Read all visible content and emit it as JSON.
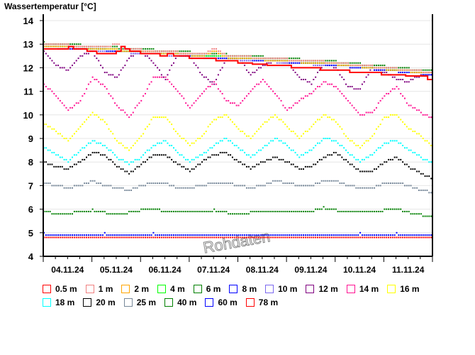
{
  "chart_data": {
    "type": "line",
    "title": "Wassertemperatur [°C]",
    "xlabel": "",
    "ylabel": "Wassertemperatur [°C]",
    "ylim": [
      4,
      14
    ],
    "yticks": [
      "4",
      "5",
      "6",
      "7",
      "8",
      "9",
      "10",
      "11",
      "12",
      "13",
      "14"
    ],
    "xlim_days": [
      0,
      8
    ],
    "x_start": "04.11.24 00:00",
    "xticks": [
      "04.11.24",
      "05.11.24",
      "06.11.24",
      "07.11.24",
      "08.11.24",
      "09.11.24",
      "10.11.24",
      "11.11.24"
    ],
    "grid": true,
    "legend_position": "bottom",
    "watermark": "Rohdaten",
    "sample_step_days": 0.25,
    "series": [
      {
        "name": "0.5 m",
        "color": "#ff0000",
        "style": "step-solid",
        "points": [
          [
            0,
            12.8
          ],
          [
            0.52,
            12.9
          ],
          [
            0.62,
            12.8
          ],
          [
            0.9,
            12.7
          ],
          [
            1.1,
            12.6
          ],
          [
            1.5,
            12.7
          ],
          [
            1.6,
            12.9
          ],
          [
            1.68,
            12.8
          ],
          [
            1.78,
            12.7
          ],
          [
            2.0,
            12.6
          ],
          [
            2.4,
            12.5
          ],
          [
            2.55,
            12.6
          ],
          [
            2.68,
            12.5
          ],
          [
            3.0,
            12.4
          ],
          [
            3.55,
            12.3
          ],
          [
            4.0,
            12.2
          ],
          [
            4.3,
            12.15
          ],
          [
            4.6,
            12.1
          ],
          [
            5.1,
            12.0
          ],
          [
            5.7,
            11.9
          ],
          [
            6.3,
            11.8
          ],
          [
            6.95,
            11.7
          ],
          [
            7.45,
            11.65
          ],
          [
            7.9,
            11.5
          ],
          [
            8.0,
            11.5
          ]
        ]
      },
      {
        "name": "1 m",
        "color": "#f08080",
        "values": [
          12.95,
          12.95,
          12.95,
          12.9,
          12.85,
          12.85,
          13.0,
          12.8,
          12.75,
          12.7,
          12.65,
          12.65,
          12.6,
          12.55,
          12.8,
          12.5,
          12.45,
          12.45,
          12.4,
          12.35,
          12.35,
          12.3,
          12.25,
          12.25,
          12.2,
          12.15,
          12.1,
          12.05,
          12.0,
          11.95,
          11.9,
          11.85,
          11.8
        ]
      },
      {
        "name": "2 m",
        "color": "#ffa500",
        "values": [
          12.9,
          12.9,
          12.9,
          12.85,
          12.8,
          12.8,
          12.75,
          12.7,
          12.7,
          12.65,
          12.6,
          12.6,
          12.55,
          12.5,
          12.7,
          12.45,
          12.4,
          12.4,
          12.35,
          12.3,
          12.3,
          12.25,
          12.2,
          12.2,
          12.15,
          12.1,
          12.05,
          12.0,
          11.95,
          11.9,
          11.85,
          11.8,
          11.75
        ]
      },
      {
        "name": "4 m",
        "color": "#00ff00",
        "values": [
          12.95,
          12.9,
          12.9,
          12.85,
          12.8,
          12.8,
          12.75,
          12.7,
          12.7,
          12.65,
          12.6,
          12.6,
          12.55,
          12.5,
          12.5,
          12.45,
          12.4,
          12.4,
          12.35,
          12.3,
          12.3,
          12.25,
          12.2,
          12.2,
          12.15,
          12.1,
          12.05,
          12.0,
          11.95,
          11.9,
          11.85,
          11.8,
          11.75
        ]
      },
      {
        "name": "6 m",
        "color": "#008000",
        "values": [
          13.05,
          13.0,
          13.0,
          12.95,
          12.9,
          12.9,
          12.85,
          12.8,
          12.8,
          12.75,
          12.7,
          12.7,
          12.65,
          12.6,
          12.6,
          12.55,
          12.5,
          12.5,
          12.45,
          12.4,
          12.4,
          12.35,
          12.3,
          12.3,
          12.25,
          12.2,
          12.15,
          12.1,
          12.05,
          12.0,
          11.95,
          11.9,
          11.85
        ]
      },
      {
        "name": "8 m",
        "color": "#0000ff",
        "values": [
          12.9,
          12.85,
          12.85,
          12.8,
          12.75,
          12.75,
          12.7,
          12.65,
          12.65,
          12.6,
          12.55,
          12.55,
          12.5,
          12.45,
          12.45,
          12.4,
          12.35,
          12.35,
          12.3,
          12.25,
          12.25,
          12.2,
          12.15,
          12.15,
          12.1,
          12.05,
          12.0,
          11.95,
          11.9,
          11.85,
          11.8,
          11.75,
          11.7
        ]
      },
      {
        "name": "10 m",
        "color": "#7b68ee",
        "values": [
          12.85,
          12.85,
          12.8,
          12.8,
          12.75,
          12.7,
          12.7,
          12.65,
          12.6,
          12.6,
          12.55,
          12.5,
          12.5,
          12.45,
          12.4,
          12.4,
          12.35,
          12.3,
          12.3,
          12.25,
          12.2,
          12.2,
          12.15,
          12.1,
          12.1,
          12.05,
          12.0,
          11.95,
          11.9,
          11.85,
          11.8,
          11.75,
          11.7
        ]
      },
      {
        "name": "12 m",
        "color": "#800080",
        "values": [
          12.7,
          12.1,
          11.9,
          12.5,
          12.7,
          11.8,
          11.6,
          12.4,
          12.7,
          12.2,
          11.5,
          12.6,
          12.5,
          11.7,
          11.3,
          12.4,
          12.4,
          11.7,
          12.1,
          12.3,
          12.2,
          11.6,
          11.3,
          12.2,
          12.0,
          11.2,
          11.1,
          12.0,
          11.8,
          11.5,
          11.4,
          11.7,
          11.7
        ]
      },
      {
        "name": "14 m",
        "color": "#ff1493",
        "values": [
          11.3,
          10.8,
          10.2,
          10.6,
          11.6,
          11.2,
          10.4,
          9.9,
          10.6,
          11.6,
          11.6,
          11.0,
          10.3,
          10.9,
          11.4,
          10.6,
          10.4,
          11.0,
          11.5,
          10.9,
          10.2,
          10.6,
          10.9,
          11.4,
          11.2,
          10.6,
          10.0,
          10.1,
          10.8,
          11.2,
          10.4,
          10.1,
          9.8
        ]
      },
      {
        "name": "16 m",
        "color": "#ffff00",
        "values": [
          9.6,
          9.3,
          8.9,
          9.5,
          10.1,
          9.7,
          8.9,
          8.5,
          9.1,
          9.9,
          9.9,
          9.2,
          8.7,
          9.1,
          9.8,
          10.0,
          9.4,
          9.0,
          9.6,
          10.0,
          9.5,
          9.0,
          9.5,
          10.0,
          9.7,
          9.0,
          8.6,
          9.1,
          9.9,
          10.0,
          9.4,
          9.1,
          8.6
        ]
      },
      {
        "name": "18 m",
        "color": "#00ffff",
        "values": [
          8.6,
          8.3,
          8.0,
          8.5,
          8.9,
          8.7,
          8.2,
          7.9,
          8.2,
          8.7,
          8.9,
          8.4,
          8.0,
          8.3,
          8.7,
          9.0,
          8.6,
          8.2,
          8.6,
          9.0,
          8.7,
          8.2,
          8.5,
          9.0,
          8.9,
          8.4,
          8.0,
          8.3,
          8.8,
          8.9,
          8.5,
          8.2,
          7.9
        ]
      },
      {
        "name": "20 m",
        "color": "#000000",
        "values": [
          8.0,
          7.8,
          7.7,
          8.0,
          8.4,
          8.3,
          7.8,
          7.5,
          7.9,
          8.3,
          8.3,
          7.9,
          7.6,
          8.0,
          8.3,
          8.4,
          8.0,
          7.7,
          8.0,
          8.2,
          8.0,
          7.7,
          7.8,
          8.2,
          8.4,
          8.0,
          7.6,
          7.6,
          8.0,
          8.2,
          7.8,
          7.5,
          7.3
        ]
      },
      {
        "name": "25 m",
        "color": "#778899",
        "values": [
          7.1,
          7.0,
          6.9,
          7.0,
          7.2,
          7.0,
          6.9,
          6.8,
          7.0,
          7.1,
          7.1,
          6.9,
          6.9,
          7.0,
          7.1,
          7.1,
          7.0,
          6.9,
          7.0,
          7.2,
          7.1,
          7.0,
          7.0,
          7.2,
          7.2,
          7.0,
          6.9,
          6.9,
          7.1,
          7.1,
          7.0,
          6.8,
          6.7
        ]
      },
      {
        "name": "40 m",
        "color": "#008000",
        "values": [
          5.9,
          5.8,
          5.8,
          5.9,
          5.95,
          5.85,
          5.8,
          5.85,
          5.95,
          6.0,
          5.9,
          5.85,
          5.85,
          5.9,
          5.95,
          5.85,
          5.8,
          5.85,
          5.9,
          5.9,
          5.85,
          5.85,
          5.9,
          6.05,
          5.95,
          5.85,
          5.85,
          5.9,
          5.95,
          6.0,
          5.85,
          5.75,
          5.7
        ]
      },
      {
        "name": "60 m",
        "color": "#0000ff",
        "values": [
          4.95,
          4.9,
          4.9,
          4.9,
          4.9,
          4.95,
          4.9,
          4.9,
          4.9,
          4.95,
          4.9,
          4.9,
          4.9,
          4.9,
          4.9,
          4.9,
          4.9,
          4.9,
          4.9,
          4.9,
          4.9,
          4.9,
          4.9,
          4.9,
          4.9,
          4.9,
          4.95,
          4.9,
          4.9,
          4.95,
          4.9,
          4.9,
          4.9
        ]
      },
      {
        "name": "78 m",
        "color": "#ff0000",
        "values": [
          4.82,
          4.82,
          4.82,
          4.82,
          4.82,
          4.82,
          4.82,
          4.82,
          4.82,
          4.82,
          4.82,
          4.82,
          4.82,
          4.82,
          4.82,
          4.82,
          4.82,
          4.82,
          4.82,
          4.82,
          4.82,
          4.82,
          4.82,
          4.82,
          4.82,
          4.82,
          4.82,
          4.82,
          4.82,
          4.82,
          4.82,
          4.82,
          4.82
        ]
      }
    ]
  }
}
